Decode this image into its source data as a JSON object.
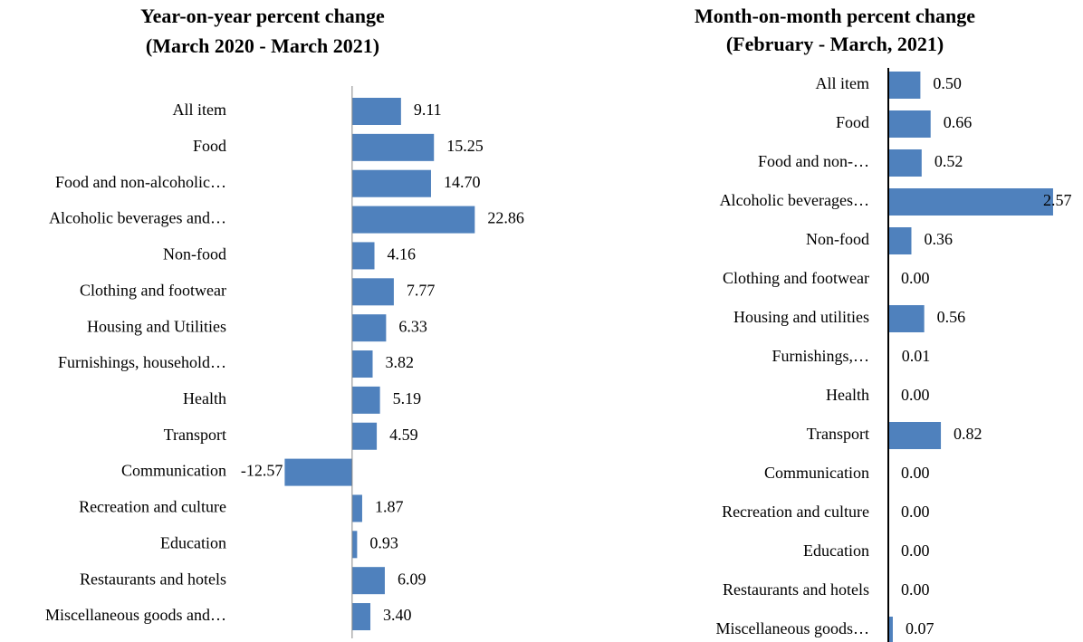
{
  "chart_data": [
    {
      "type": "bar",
      "orientation": "horizontal",
      "title": "Year-on-year percent change",
      "subtitle": "(March 2020 - March 2021)",
      "categories": [
        "All item",
        "Food",
        "Food and non-alcoholic…",
        "Alcoholic beverages and…",
        "Non-food",
        "Clothing and footwear",
        "Housing and Utilities",
        "Furnishings, household…",
        "Health",
        "Transport",
        "Communication",
        "Recreation and culture",
        "Education",
        "Restaurants and hotels",
        "Miscellaneous goods and…"
      ],
      "values": [
        9.11,
        15.25,
        14.7,
        22.86,
        4.16,
        7.77,
        6.33,
        3.82,
        5.19,
        4.59,
        -12.57,
        1.87,
        0.93,
        6.09,
        3.4
      ],
      "value_labels": [
        "9.11",
        "15.25",
        "14.70",
        "22.86",
        "4.16",
        "7.77",
        "6.33",
        "3.82",
        "5.19",
        "4.59",
        "-12.57",
        "1.87",
        "0.93",
        "6.09",
        "3.40"
      ],
      "color": "#4f81bd",
      "xlim": [
        -15,
        25
      ]
    },
    {
      "type": "bar",
      "orientation": "horizontal",
      "title": "Month-on-month percent change",
      "subtitle": "(February - March, 2021)",
      "categories": [
        "All item",
        "Food",
        "Food and non-…",
        "Alcoholic beverages…",
        "Non-food",
        "Clothing and footwear",
        "Housing and utilities",
        "Furnishings,…",
        "Health",
        "Transport",
        "Communication",
        "Recreation and culture",
        "Education",
        "Restaurants and hotels",
        "Miscellaneous goods…"
      ],
      "values": [
        0.5,
        0.66,
        0.52,
        2.57,
        0.36,
        0,
        0.56,
        0.01,
        0,
        0.82,
        0,
        0,
        0,
        0,
        0.07
      ],
      "value_labels": [
        "0.50",
        "0.66",
        "0.52",
        "2.57",
        "0.36",
        "0.00",
        "0.56",
        "0.01",
        "0.00",
        "0.82",
        "0.00",
        "0.00",
        "0.00",
        "0.00",
        "0.07"
      ],
      "color": "#4f81bd",
      "xlim": [
        0,
        3
      ]
    }
  ]
}
